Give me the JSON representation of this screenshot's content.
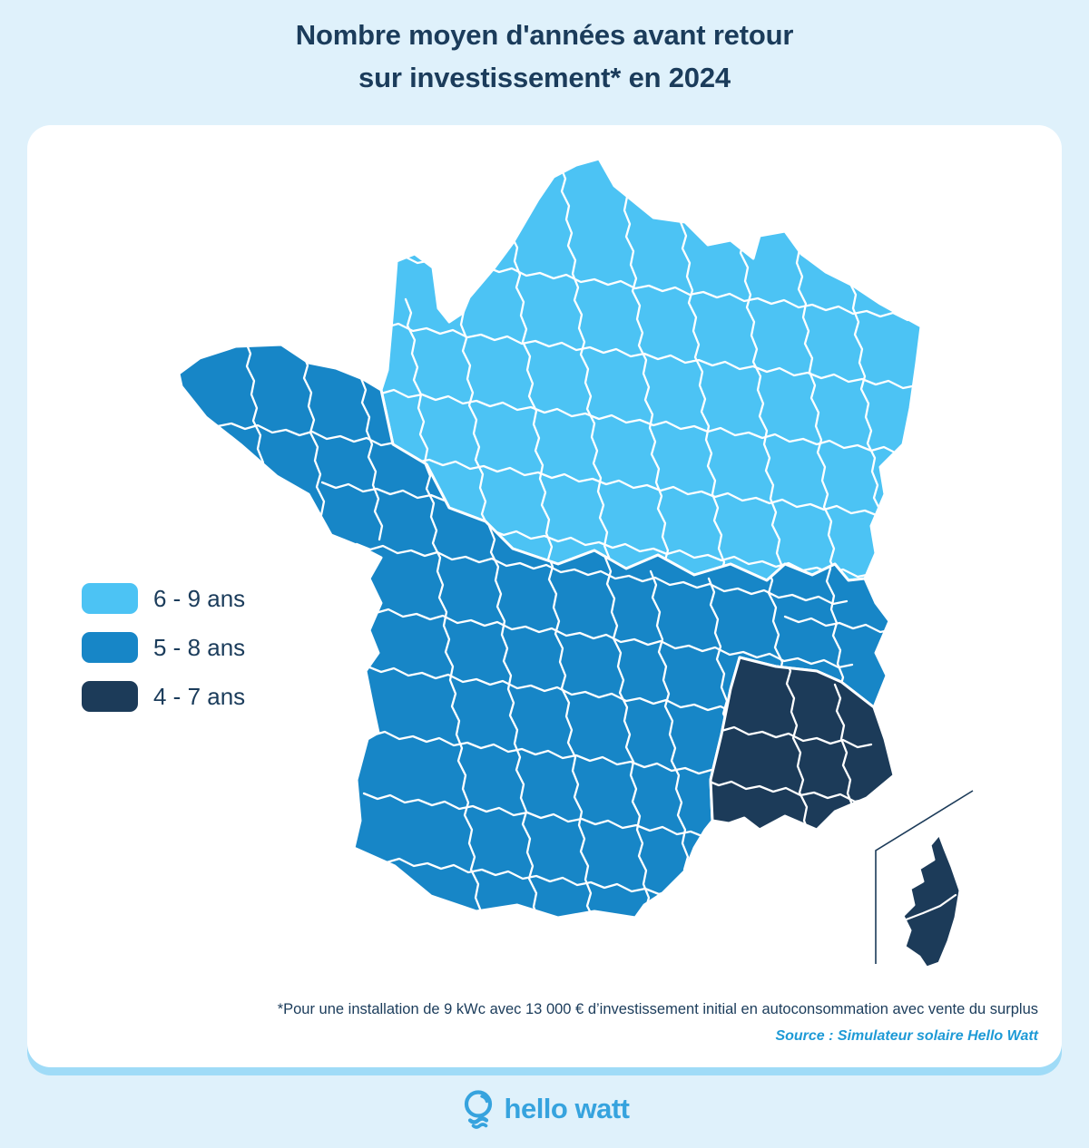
{
  "title": {
    "line1": "Nombre moyen d'années avant retour",
    "line2": "sur investissement* en 2024"
  },
  "legend": {
    "items": [
      {
        "label": "6 - 9 ans",
        "color": "#4CC3F4"
      },
      {
        "label": "5 - 8 ans",
        "color": "#1786C7"
      },
      {
        "label": "4 - 7 ans",
        "color": "#1C3B59"
      }
    ]
  },
  "map": {
    "type": "choropleth",
    "region": "France métropolitaine par départements (avec Corse en encart)",
    "zones": [
      {
        "label": "6 - 9 ans",
        "area": "nord et nord-est de la France",
        "color": "#4CC3F4"
      },
      {
        "label": "5 - 8 ans",
        "area": "ouest, centre et sud-ouest de la France",
        "color": "#1786C7"
      },
      {
        "label": "4 - 7 ans",
        "area": "sud-est de la France et Corse",
        "color": "#1C3B59"
      }
    ],
    "border_color": "#FFFFFF"
  },
  "footnote": "*Pour une installation de 9 kWc avec 13 000 € d’investissement initial en autoconsommation avec vente du surplus",
  "source": "Source : Simulateur solaire Hello Watt",
  "footer": {
    "logo_text": "hello watt"
  },
  "colors": {
    "page_background": "#DFF1FB",
    "card_background": "#FFFFFF",
    "card_shadow_band": "#9FDBF7",
    "title_text": "#1B3C5B",
    "source_text": "#1E9AD6",
    "logo_blue": "#36A3DE"
  }
}
